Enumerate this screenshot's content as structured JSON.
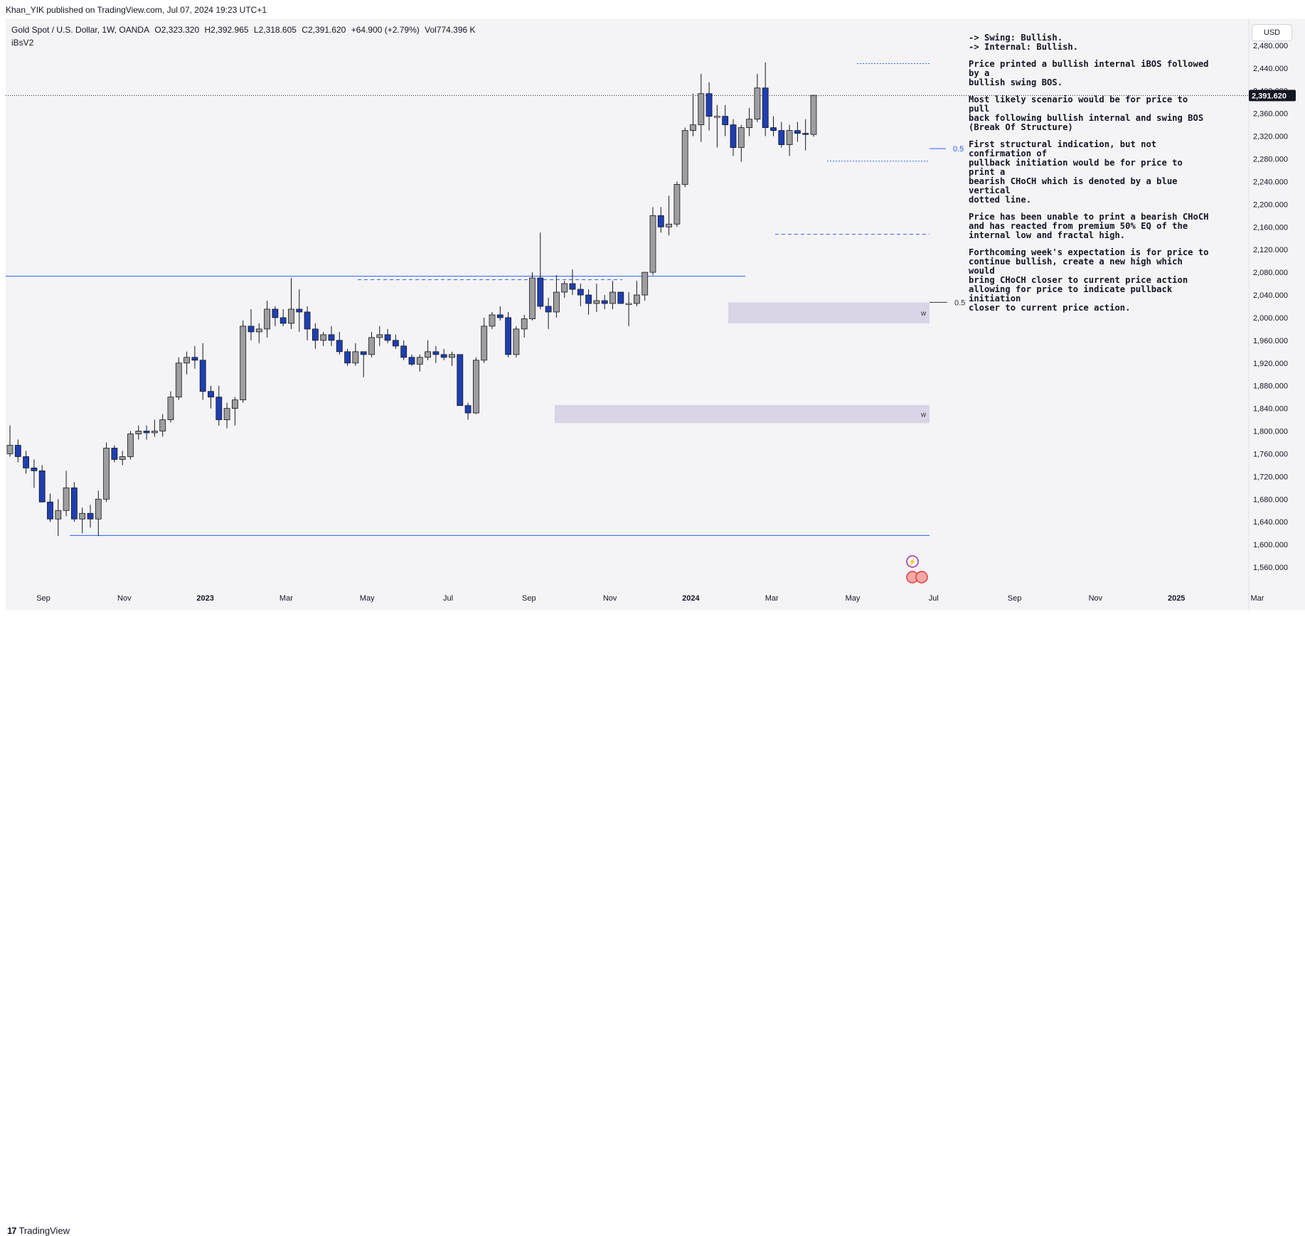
{
  "publisher": "Khan_YIK published on TradingView.com, Jul 07, 2024 19:23 UTC+1",
  "legend": {
    "symbol": "Gold Spot / U.S. Dollar, 1W, OANDA",
    "open": "O2,323.320",
    "high": "H2,392.965",
    "low": "L2,318.605",
    "close": "C2,391.620",
    "change": "+64.900 (+2.79%)",
    "volume": "Vol774.396 K"
  },
  "indicator": "iBsV2",
  "currency": "USD",
  "notes": [
    "-> Swing: Bullish.\n-> Internal: Bullish.",
    "Price  printed a bullish internal iBOS followed by a\nbullish swing BOS.",
    "Most likely scenario would be for price to pull\nback following bullish internal and swing BOS\n(Break Of Structure)",
    "First structural indication, but not confirmation of\npullback initiation would be for price to print a\nbearish CHoCH which is denoted by a blue vertical\ndotted line.",
    "Price has been unable to print a bearish CHoCH\nand has reacted from premium 50% EQ of the\ninternal low and fractal high.",
    "Forthcoming week's expectation is for price to\ncontinue bullish, create a new high which would\nbring CHoCH closer to current price action\nallowing for price to indicate pullback initiation\ncloser to current price action."
  ],
  "footer": {
    "brand": "TradingView",
    "brand_mark": "17"
  },
  "colors": {
    "bull": "#9e9e9e",
    "bear": "#1e3fb0",
    "doji": "#ffffff",
    "line": "#2962ff",
    "zone": "#d9d4e6",
    "bg": "#f4f3f6"
  },
  "chart_data": {
    "type": "candlestick",
    "timeframe": "1W",
    "y_axis": {
      "ticks": [
        1560,
        1600,
        1640,
        1680,
        1720,
        1760,
        1800,
        1840,
        1880,
        1920,
        1960,
        2000,
        2040,
        2080,
        2120,
        2160,
        2200,
        2240,
        2280,
        2320,
        2360,
        2400,
        2440,
        2480
      ],
      "labels": [
        "1,560.000",
        "1,600.000",
        "1,640.000",
        "1,680.000",
        "1,720.000",
        "1,760.000",
        "1,800.000",
        "1,840.000",
        "1,880.000",
        "1,920.000",
        "1,960.000",
        "2,000.000",
        "2,040.000",
        "2,080.000",
        "2,120.000",
        "2,160.000",
        "2,200.000",
        "2,240.000",
        "2,280.000",
        "2,320.000",
        "2,360.000",
        "2,400.000",
        "2,440.000",
        "2,480.000"
      ],
      "range": [
        1535,
        2525
      ]
    },
    "x_axis_labels": [
      "Sep",
      "Nov",
      "2023",
      "Mar",
      "May",
      "Jul",
      "Sep",
      "Nov",
      "2024",
      "Mar",
      "May",
      "Jul",
      "Sep",
      "Nov",
      "2025",
      "Mar"
    ],
    "current_price": 2391.62,
    "current_price_label": "2,391.620",
    "candles": [
      [
        1760,
        1810,
        1755,
        1775
      ],
      [
        1775,
        1785,
        1745,
        1755
      ],
      [
        1755,
        1765,
        1725,
        1735
      ],
      [
        1735,
        1750,
        1700,
        1730
      ],
      [
        1730,
        1740,
        1680,
        1675
      ],
      [
        1675,
        1690,
        1640,
        1645
      ],
      [
        1645,
        1680,
        1615,
        1660
      ],
      [
        1660,
        1730,
        1650,
        1700
      ],
      [
        1700,
        1710,
        1640,
        1645
      ],
      [
        1645,
        1665,
        1620,
        1655
      ],
      [
        1655,
        1670,
        1630,
        1645
      ],
      [
        1645,
        1695,
        1615,
        1680
      ],
      [
        1680,
        1780,
        1675,
        1770
      ],
      [
        1770,
        1775,
        1745,
        1750
      ],
      [
        1750,
        1765,
        1740,
        1755
      ],
      [
        1755,
        1800,
        1750,
        1795
      ],
      [
        1795,
        1810,
        1785,
        1800
      ],
      [
        1800,
        1810,
        1785,
        1797
      ],
      [
        1797,
        1820,
        1790,
        1800
      ],
      [
        1800,
        1830,
        1790,
        1820
      ],
      [
        1820,
        1870,
        1815,
        1860
      ],
      [
        1860,
        1930,
        1855,
        1920
      ],
      [
        1920,
        1940,
        1900,
        1930
      ],
      [
        1930,
        1950,
        1910,
        1925
      ],
      [
        1925,
        1955,
        1855,
        1870
      ],
      [
        1870,
        1880,
        1840,
        1860
      ],
      [
        1860,
        1880,
        1810,
        1820
      ],
      [
        1820,
        1850,
        1805,
        1840
      ],
      [
        1840,
        1860,
        1810,
        1855
      ],
      [
        1855,
        1995,
        1850,
        1985
      ],
      [
        1985,
        2015,
        1960,
        1975
      ],
      [
        1975,
        1990,
        1955,
        1980
      ],
      [
        1980,
        2030,
        1965,
        2015
      ],
      [
        2015,
        2020,
        1985,
        2000
      ],
      [
        2000,
        2015,
        1985,
        1990
      ],
      [
        1990,
        2070,
        1980,
        2015
      ],
      [
        2015,
        2050,
        1975,
        2010
      ],
      [
        2010,
        2020,
        1960,
        1980
      ],
      [
        1980,
        1990,
        1945,
        1960
      ],
      [
        1960,
        1975,
        1950,
        1970
      ],
      [
        1970,
        1985,
        1950,
        1960
      ],
      [
        1960,
        1975,
        1935,
        1940
      ],
      [
        1940,
        1945,
        1915,
        1920
      ],
      [
        1920,
        1955,
        1915,
        1940
      ],
      [
        1940,
        1935,
        1895,
        1935
      ],
      [
        1935,
        1975,
        1930,
        1965
      ],
      [
        1965,
        1985,
        1950,
        1970
      ],
      [
        1970,
        1980,
        1955,
        1960
      ],
      [
        1960,
        1970,
        1945,
        1950
      ],
      [
        1950,
        1960,
        1925,
        1930
      ],
      [
        1930,
        1935,
        1915,
        1918
      ],
      [
        1918,
        1935,
        1905,
        1930
      ],
      [
        1930,
        1960,
        1925,
        1940
      ],
      [
        1940,
        1950,
        1920,
        1935
      ],
      [
        1935,
        1945,
        1925,
        1930
      ],
      [
        1930,
        1940,
        1915,
        1935
      ],
      [
        1935,
        1935,
        1850,
        1845
      ],
      [
        1845,
        1850,
        1820,
        1832
      ],
      [
        1832,
        1930,
        1830,
        1925
      ],
      [
        1925,
        2000,
        1920,
        1985
      ],
      [
        1985,
        2010,
        1980,
        2005
      ],
      [
        2005,
        2020,
        1995,
        2000
      ],
      [
        2000,
        2010,
        1930,
        1935
      ],
      [
        1935,
        1985,
        1930,
        1980
      ],
      [
        1980,
        2005,
        1965,
        1998
      ],
      [
        1998,
        2080,
        1995,
        2070
      ],
      [
        2070,
        2150,
        2015,
        2020
      ],
      [
        2020,
        2035,
        1980,
        2010
      ],
      [
        2010,
        2075,
        2000,
        2045
      ],
      [
        2045,
        2065,
        2035,
        2060
      ],
      [
        2060,
        2085,
        2040,
        2050
      ],
      [
        2050,
        2060,
        2020,
        2040
      ],
      [
        2040,
        2050,
        2005,
        2025
      ],
      [
        2025,
        2060,
        2010,
        2030
      ],
      [
        2030,
        2040,
        2015,
        2025
      ],
      [
        2025,
        2065,
        2015,
        2045
      ],
      [
        2045,
        2045,
        2030,
        2025
      ],
      [
        2025,
        2045,
        1985,
        2025
      ],
      [
        2025,
        2065,
        2020,
        2040
      ],
      [
        2040,
        2080,
        2030,
        2080
      ],
      [
        2080,
        2195,
        2075,
        2180
      ],
      [
        2180,
        2195,
        2150,
        2160
      ],
      [
        2160,
        2215,
        2145,
        2165
      ],
      [
        2165,
        2240,
        2160,
        2235
      ],
      [
        2235,
        2335,
        2230,
        2330
      ],
      [
        2330,
        2395,
        2320,
        2340
      ],
      [
        2340,
        2430,
        2310,
        2395
      ],
      [
        2395,
        2415,
        2330,
        2355
      ],
      [
        2355,
        2375,
        2300,
        2355
      ],
      [
        2355,
        2375,
        2320,
        2340
      ],
      [
        2340,
        2350,
        2285,
        2300
      ],
      [
        2300,
        2340,
        2275,
        2335
      ],
      [
        2335,
        2370,
        2320,
        2350
      ],
      [
        2350,
        2430,
        2345,
        2405
      ],
      [
        2405,
        2450,
        2320,
        2335
      ],
      [
        2335,
        2355,
        2320,
        2330
      ],
      [
        2330,
        2345,
        2300,
        2305
      ],
      [
        2305,
        2340,
        2285,
        2330
      ],
      [
        2330,
        2345,
        2310,
        2325
      ],
      [
        2325,
        2350,
        2295,
        2323
      ],
      [
        2323,
        2393,
        2319,
        2392
      ]
    ],
    "lines": [
      {
        "style": "solid",
        "price": 2073,
        "label": ""
      },
      {
        "style": "solid",
        "price": 1616,
        "label": ""
      },
      {
        "style": "dashed",
        "price": 2067,
        "label": ""
      },
      {
        "style": "dashed",
        "price": 2147,
        "label": ""
      },
      {
        "style": "dotted",
        "price": 2448,
        "label": ""
      },
      {
        "style": "dotted",
        "price": 2276,
        "label": ""
      },
      {
        "style": "solid",
        "price": 2298,
        "label": "0.5"
      },
      {
        "style": "solid",
        "price": 2027,
        "label": "0.5"
      }
    ],
    "zones": [
      {
        "top": 2027,
        "bottom": 1990,
        "label": "w"
      },
      {
        "top": 1846,
        "bottom": 1814,
        "label": "w"
      }
    ]
  }
}
